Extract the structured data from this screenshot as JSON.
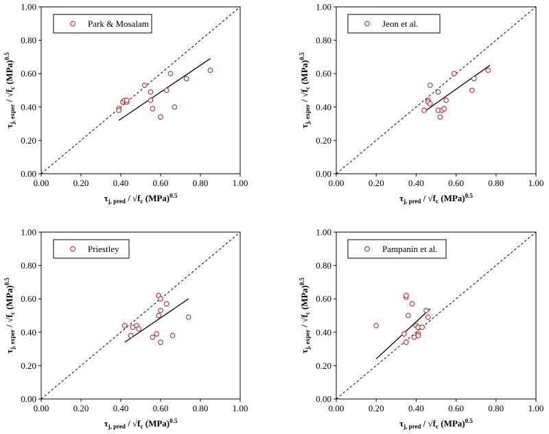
{
  "chart_data": [
    {
      "type": "scatter",
      "legend_label": "Park & Mosalam",
      "legend_position": "top-left",
      "xlabel": "τj, pred / √fc (MPa)0.5",
      "ylabel": "τj, exper / √fc (MPa)0.5",
      "xlim": [
        0,
        1
      ],
      "ylim": [
        0,
        1
      ],
      "x_ticks": [
        "0.00",
        "0.20",
        "0.40",
        "0.60",
        "0.80",
        "1.00"
      ],
      "y_ticks": [
        "0.00",
        "0.20",
        "0.40",
        "0.60",
        "0.80",
        "1.00"
      ],
      "grid": false,
      "marker_color": "#c0272d",
      "points": [
        [
          0.39,
          0.39
        ],
        [
          0.39,
          0.38
        ],
        [
          0.41,
          0.43
        ],
        [
          0.42,
          0.44
        ],
        [
          0.43,
          0.43
        ],
        [
          0.43,
          0.44
        ],
        [
          0.52,
          0.53
        ],
        [
          0.55,
          0.49
        ],
        [
          0.55,
          0.44
        ],
        [
          0.56,
          0.39
        ],
        [
          0.6,
          0.34
        ],
        [
          0.63,
          0.5
        ],
        [
          0.65,
          0.6
        ],
        [
          0.67,
          0.4
        ],
        [
          0.73,
          0.57
        ],
        [
          0.85,
          0.62
        ]
      ],
      "trend": [
        [
          0.39,
          0.32
        ],
        [
          0.85,
          0.69
        ]
      ],
      "reference_line": [
        [
          0,
          0
        ],
        [
          1,
          1
        ]
      ]
    },
    {
      "type": "scatter",
      "legend_label": "Jeon et al.",
      "legend_position": "top-left",
      "xlabel": "τj, pred / √fc (MPa)0.5",
      "ylabel": "τj, exper / √fc (MPa)0.5",
      "xlim": [
        0,
        1
      ],
      "ylim": [
        0,
        1
      ],
      "x_ticks": [
        "0.00",
        "0.20",
        "0.40",
        "0.60",
        "0.80",
        "1.00"
      ],
      "y_ticks": [
        "0.00",
        "0.20",
        "0.40",
        "0.60",
        "0.80",
        "1.00"
      ],
      "grid": false,
      "marker_color": "#c0272d",
      "points": [
        [
          0.44,
          0.38
        ],
        [
          0.46,
          0.44
        ],
        [
          0.46,
          0.43
        ],
        [
          0.47,
          0.42
        ],
        [
          0.47,
          0.53
        ],
        [
          0.51,
          0.49
        ],
        [
          0.51,
          0.38
        ],
        [
          0.52,
          0.34
        ],
        [
          0.53,
          0.38
        ],
        [
          0.54,
          0.39
        ],
        [
          0.55,
          0.44
        ],
        [
          0.59,
          0.6
        ],
        [
          0.68,
          0.5
        ],
        [
          0.69,
          0.57
        ],
        [
          0.76,
          0.62
        ]
      ],
      "trend": [
        [
          0.45,
          0.38
        ],
        [
          0.77,
          0.65
        ]
      ],
      "reference_line": [
        [
          0,
          0
        ],
        [
          1,
          1
        ]
      ]
    },
    {
      "type": "scatter",
      "legend_label": "Priestley",
      "legend_position": "top-left",
      "xlabel": "τj, pred / √fc (MPa)0.5",
      "ylabel": "τj, exper / √fc (MPa)0.5",
      "xlim": [
        0,
        1
      ],
      "ylim": [
        0,
        1
      ],
      "x_ticks": [
        "0.00",
        "0.20",
        "0.40",
        "0.60",
        "0.80",
        "1.00"
      ],
      "y_ticks": [
        "0.00",
        "0.20",
        "0.40",
        "0.60",
        "0.80",
        "1.00"
      ],
      "grid": false,
      "marker_color": "#c0272d",
      "points": [
        [
          0.42,
          0.44
        ],
        [
          0.45,
          0.38
        ],
        [
          0.46,
          0.43
        ],
        [
          0.48,
          0.44
        ],
        [
          0.49,
          0.42
        ],
        [
          0.56,
          0.37
        ],
        [
          0.58,
          0.39
        ],
        [
          0.59,
          0.5
        ],
        [
          0.59,
          0.62
        ],
        [
          0.6,
          0.6
        ],
        [
          0.6,
          0.53
        ],
        [
          0.6,
          0.34
        ],
        [
          0.63,
          0.57
        ],
        [
          0.66,
          0.38
        ],
        [
          0.74,
          0.49
        ]
      ],
      "trend": [
        [
          0.42,
          0.34
        ],
        [
          0.74,
          0.6
        ]
      ],
      "reference_line": [
        [
          0,
          0
        ],
        [
          1,
          1
        ]
      ]
    },
    {
      "type": "scatter",
      "legend_label": "Pampanin et al.",
      "legend_position": "top-left",
      "xlabel": "τj, pred / √fc (MPa)0.5",
      "ylabel": "τj, exper / √fc (MPa)0.5",
      "xlim": [
        0,
        1
      ],
      "ylim": [
        0,
        1
      ],
      "x_ticks": [
        "0.00",
        "0.20",
        "0.40",
        "0.60",
        "0.80",
        "1.00"
      ],
      "y_ticks": [
        "0.00",
        "0.20",
        "0.40",
        "0.60",
        "0.80",
        "1.00"
      ],
      "grid": false,
      "marker_color": "#c0272d",
      "points": [
        [
          0.2,
          0.44
        ],
        [
          0.34,
          0.39
        ],
        [
          0.35,
          0.61
        ],
        [
          0.35,
          0.62
        ],
        [
          0.35,
          0.34
        ],
        [
          0.36,
          0.5
        ],
        [
          0.38,
          0.57
        ],
        [
          0.39,
          0.37
        ],
        [
          0.4,
          0.44
        ],
        [
          0.41,
          0.43
        ],
        [
          0.41,
          0.39
        ],
        [
          0.41,
          0.38
        ],
        [
          0.43,
          0.43
        ],
        [
          0.45,
          0.53
        ],
        [
          0.46,
          0.49
        ]
      ],
      "trend": [
        [
          0.2,
          0.24
        ],
        [
          0.47,
          0.54
        ]
      ],
      "reference_line": [
        [
          0,
          0
        ],
        [
          1,
          1
        ]
      ]
    }
  ]
}
